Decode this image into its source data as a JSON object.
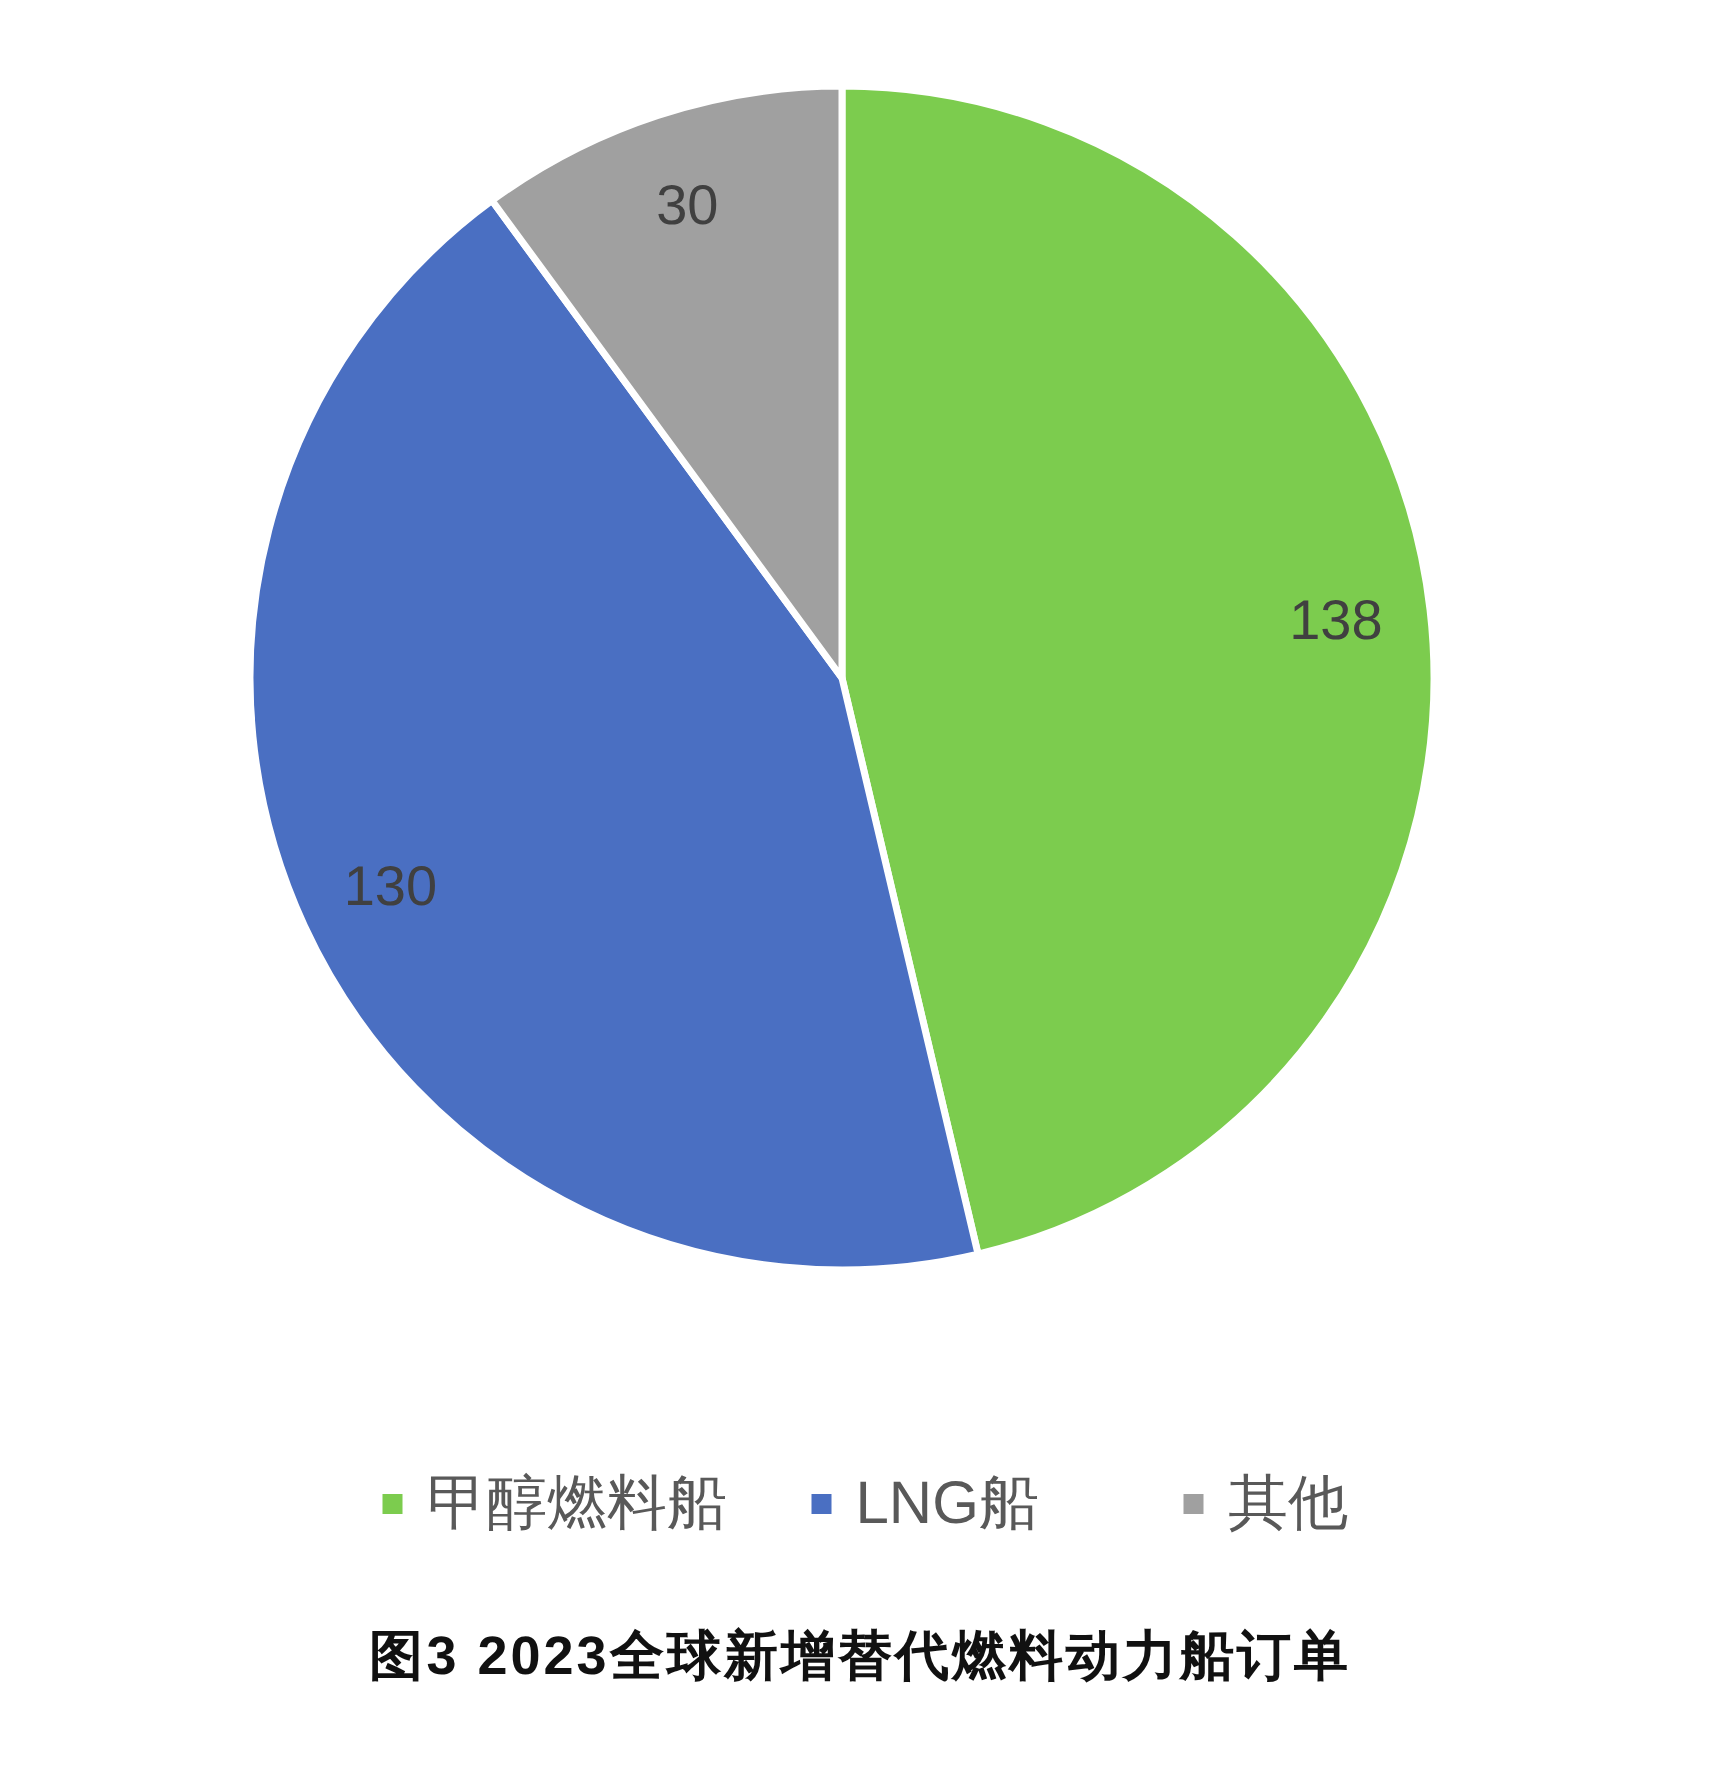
{
  "chart_data": {
    "type": "pie",
    "title": "图3 2023全球新增替代燃料动力船订单",
    "categories": [
      "甲醇燃料船",
      "LNG船",
      "其他"
    ],
    "values": [
      138,
      130,
      30
    ],
    "colors": [
      "#7ccc4e",
      "#4a6fc2",
      "#a0a0a0"
    ],
    "data_labels": true,
    "legend": "bottom"
  }
}
